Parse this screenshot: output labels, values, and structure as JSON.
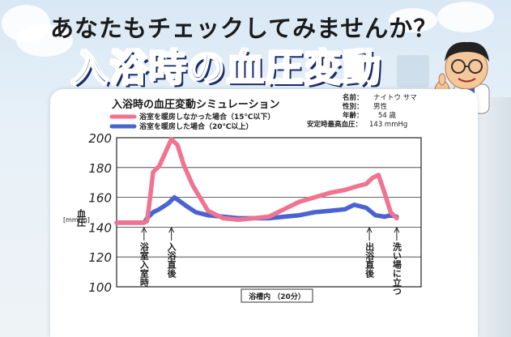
{
  "header": {
    "headline": "あなたもチェックしてみませんか？",
    "title_part1": "入浴時の",
    "title_part2": "血圧変動"
  },
  "profile": [
    {
      "label": "名前：",
      "value": "ナイトウ サマ"
    },
    {
      "label": "性別：",
      "value": "男性"
    },
    {
      "label": "年齢：",
      "value": "54 歳"
    },
    {
      "label": "安定時最高血圧：",
      "value": "143 mmHg"
    }
  ],
  "colors": {
    "unheated": "#f07390",
    "heated": "#4a63d0",
    "title_blue": "#1d3b9a",
    "title_red": "#e0102a"
  },
  "chart_data": {
    "type": "line",
    "title": "入浴時の血圧変動シミュレーション",
    "ylabel": "血圧",
    "yunit": "[mmHg]",
    "xlabel": "浴槽内 （20分）",
    "ylim": [
      100,
      200
    ],
    "yticks": [
      100,
      120,
      140,
      160,
      180,
      200
    ],
    "xlim": [
      0,
      100
    ],
    "grid": true,
    "legend_position": "top-left",
    "series": [
      {
        "name": "浴室を暖房しなかった場合（15℃以下）",
        "x": [
          0,
          9,
          10,
          11,
          12,
          14,
          16,
          18,
          20,
          22,
          25,
          30,
          35,
          40,
          45,
          50,
          55,
          60,
          65,
          70,
          75,
          80,
          82,
          84,
          86,
          88,
          90,
          92
        ],
        "y": [
          143,
          143,
          144,
          160,
          177,
          181,
          190,
          199,
          195,
          182,
          168,
          151,
          146,
          145,
          146,
          147,
          152,
          157,
          160,
          163,
          165,
          168,
          169,
          173,
          175,
          163,
          150,
          146
        ]
      },
      {
        "name": "浴室を暖房した場合（20℃以上）",
        "x": [
          0,
          9,
          10,
          12,
          14,
          17,
          19,
          21,
          23,
          26,
          30,
          35,
          40,
          45,
          50,
          55,
          60,
          65,
          70,
          75,
          78,
          82,
          85,
          88,
          90,
          92
        ],
        "y": [
          143,
          143,
          146,
          150,
          152,
          156,
          160,
          157,
          154,
          150,
          148,
          147,
          146,
          146,
          146,
          147,
          148,
          150,
          151,
          152,
          155,
          153,
          148,
          147,
          148,
          147
        ]
      }
    ],
    "annotations": [
      {
        "x": 9,
        "text": "浴室入室時"
      },
      {
        "x": 18,
        "text": "入浴直後"
      },
      {
        "x": 83,
        "text": "出浴直後"
      },
      {
        "x": 92,
        "text": "洗い場に立つ"
      }
    ]
  }
}
